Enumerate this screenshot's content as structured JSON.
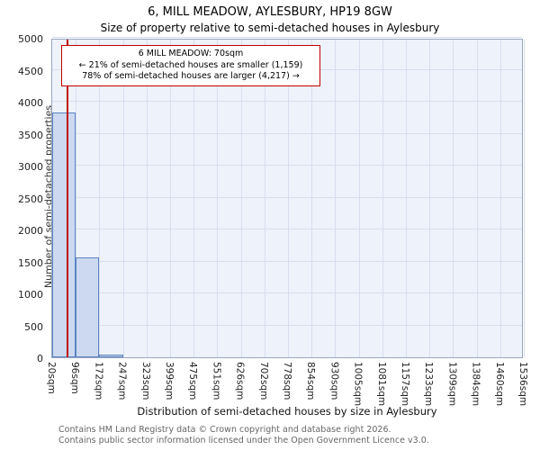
{
  "title": "6, MILL MEADOW, AYLESBURY, HP19 8GW",
  "subtitle": "Size of property relative to semi-detached houses in Aylesbury",
  "chart_data": {
    "type": "bar",
    "title": "6, MILL MEADOW, AYLESBURY, HP19 8GW",
    "subtitle": "Size of property relative to semi-detached houses in Aylesbury",
    "xlabel": "Distribution of semi-detached houses by size in Aylesbury",
    "ylabel": "Number of semi-detached properties",
    "ylim": [
      0,
      5000
    ],
    "ytick_step": 500,
    "bin_edges_sqm": [
      20,
      96,
      172,
      247,
      323,
      399,
      475,
      551,
      626,
      702,
      778,
      854,
      930,
      1005,
      1081,
      1157,
      1233,
      1309,
      1384,
      1460,
      1536
    ],
    "xtick_labels": [
      "20sqm",
      "96sqm",
      "172sqm",
      "247sqm",
      "323sqm",
      "399sqm",
      "475sqm",
      "551sqm",
      "626sqm",
      "702sqm",
      "778sqm",
      "854sqm",
      "930sqm",
      "1005sqm",
      "1081sqm",
      "1157sqm",
      "1233sqm",
      "1309sqm",
      "1384sqm",
      "1460sqm",
      "1536sqm"
    ],
    "values": [
      3830,
      1570,
      45,
      0,
      0,
      0,
      0,
      0,
      0,
      0,
      0,
      0,
      0,
      0,
      0,
      0,
      0,
      0,
      0,
      0
    ],
    "grid": true,
    "legend": "none",
    "marker": {
      "value_sqm": 70,
      "color": "#c00000"
    },
    "annotation_lines": [
      "6 MILL MEADOW: 70sqm",
      "← 21% of semi-detached houses are smaller (1,159)",
      "78% of semi-detached houses are larger (4,217) →"
    ],
    "colors": {
      "bar_fill": "#ccd9f0",
      "bar_border": "#5b84c2",
      "plot_bg": "#eef2fa",
      "grid": "#d7deee",
      "marker_line": "#c00000"
    }
  },
  "footer": {
    "line1": "Contains HM Land Registry data © Crown copyright and database right 2026.",
    "line2": "Contains public sector information licensed under the Open Government Licence v3.0."
  }
}
